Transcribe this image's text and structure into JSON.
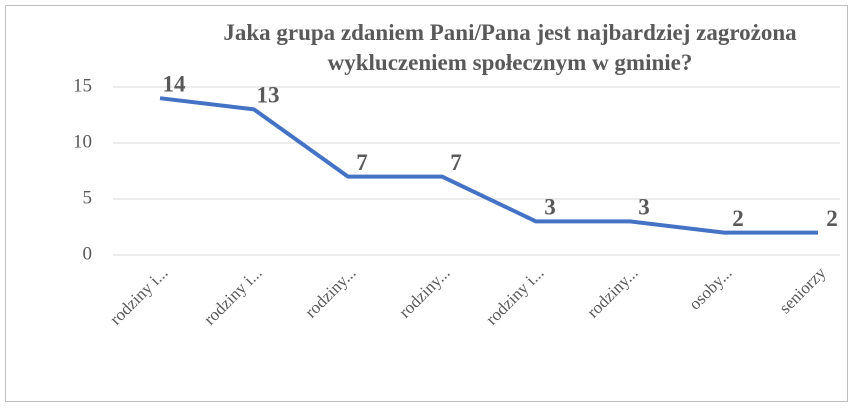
{
  "chart_data": {
    "type": "line",
    "title": "Jaka grupa zdaniem Pani/Pana jest najbardziej zagrożona wykluczeniem społecznym w gminie?",
    "categories": [
      "rodziny i...",
      "rodziny i...",
      "rodziny...",
      "rodziny...",
      "rodziny i...",
      "rodziny...",
      "osoby...",
      "seniorzy"
    ],
    "series": [
      {
        "name": "",
        "color": "#4472c4",
        "values": [
          14,
          13,
          7,
          7,
          3,
          3,
          2,
          2
        ]
      }
    ],
    "ylim": [
      0,
      15
    ],
    "yticks": [
      0,
      5,
      10,
      15
    ],
    "grid": true
  }
}
